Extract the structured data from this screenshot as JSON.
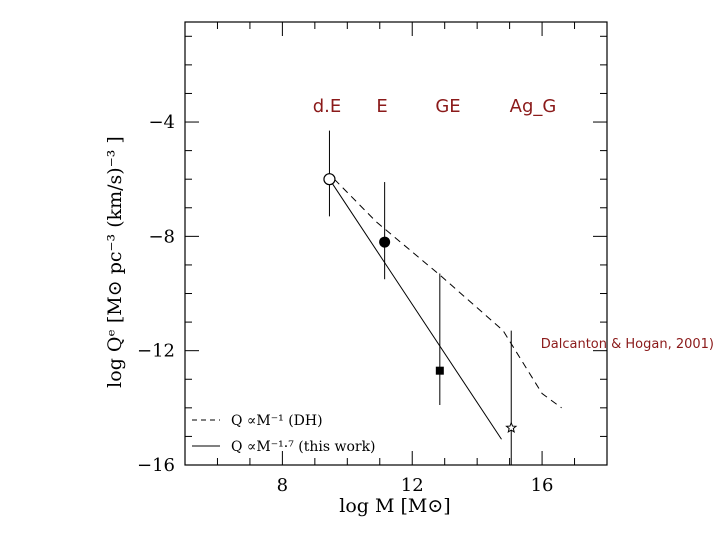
{
  "chart_data": {
    "type": "scatter",
    "title": "",
    "xlabel": "log M [M⊙]",
    "ylabel": "log Qᵉ [M⊙ pc⁻³ (km/s)⁻³ ]",
    "xlim": [
      5,
      18
    ],
    "ylim": [
      -16,
      -0.5
    ],
    "xticks": [
      8,
      12,
      16
    ],
    "yticks": [
      -4,
      -8,
      -12,
      -16
    ],
    "xtick_labels": [
      "8",
      "12",
      "16"
    ],
    "ytick_labels": [
      "−4",
      "−8",
      "−12",
      "−16"
    ],
    "points": [
      {
        "name": "dE",
        "x": 9.45,
        "y": -6.0,
        "y_err_low": -7.3,
        "y_err_high": -4.3,
        "marker": "open-circle"
      },
      {
        "name": "E",
        "x": 11.15,
        "y": -8.2,
        "y_err_low": -9.5,
        "y_err_high": -6.1,
        "marker": "filled-circle"
      },
      {
        "name": "GE",
        "x": 12.85,
        "y": -12.7,
        "y_err_low": -13.9,
        "y_err_high": -9.3,
        "marker": "filled-square"
      },
      {
        "name": "Ag_G",
        "x": 15.05,
        "y": -14.7,
        "y_err_low": -16.0,
        "y_err_high": -11.3,
        "marker": "open-star"
      }
    ],
    "series": [
      {
        "name": "DH",
        "style": "dashed",
        "x": [
          9.6,
          10.9,
          12.9,
          14.8,
          16.0,
          16.6
        ],
        "y": [
          -6.0,
          -7.5,
          -9.4,
          -11.3,
          -13.5,
          -14.0
        ]
      },
      {
        "name": "this work",
        "style": "solid",
        "x": [
          9.45,
          14.75
        ],
        "y": [
          -6.0,
          -15.1
        ]
      }
    ],
    "legend": {
      "placement": "bottom-left",
      "entries": [
        {
          "style": "dashed",
          "label": "Q  ∝M⁻¹  (DH)"
        },
        {
          "style": "solid",
          "label": "Q  ∝M⁻¹·⁷  (this work)"
        }
      ]
    }
  },
  "annotations": {
    "class_labels": [
      "d.E",
      "E",
      "GE",
      "Ag_G"
    ],
    "citation": "Dalcanton & Hogan, 2001)"
  },
  "colors": {
    "axis": "#000000",
    "data": "#000000",
    "annotation": "#8b1a1a"
  }
}
